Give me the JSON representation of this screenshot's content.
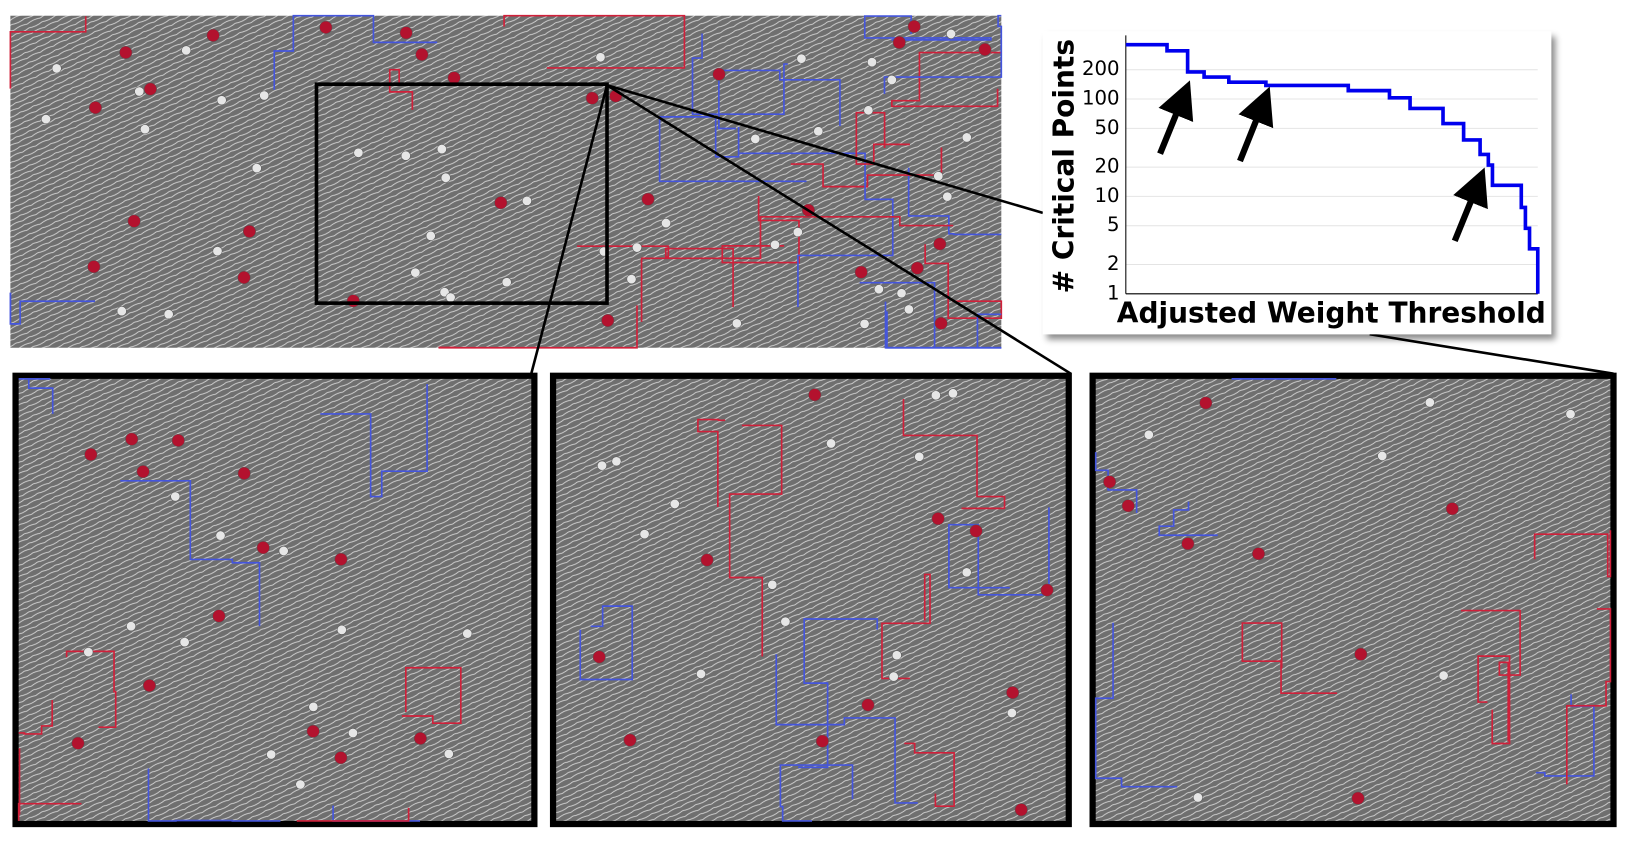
{
  "chart_data": {
    "type": "line",
    "xlabel": "Adjusted Weight Threshold",
    "ylabel": "# Critical Points",
    "x": [
      0,
      0.1,
      0.15,
      0.19,
      0.25,
      0.34,
      0.54,
      0.64,
      0.69,
      0.77,
      0.82,
      0.86,
      0.88,
      0.89,
      0.96,
      0.97,
      0.98,
      1.0
    ],
    "series": [
      {
        "color": "#0000ee",
        "values": [
          362,
          313,
          190,
          168,
          149,
          138,
          122,
          103,
          80,
          56,
          38,
          27,
          21,
          13,
          7.7,
          4.7,
          2.9,
          1
        ]
      }
    ],
    "xlim": [
      0,
      1
    ],
    "ylim": [
      1,
      450
    ],
    "yticks": [
      1,
      2,
      5,
      10,
      20,
      50,
      100,
      200
    ],
    "log_y": true,
    "grid": true,
    "step": true
  }
}
